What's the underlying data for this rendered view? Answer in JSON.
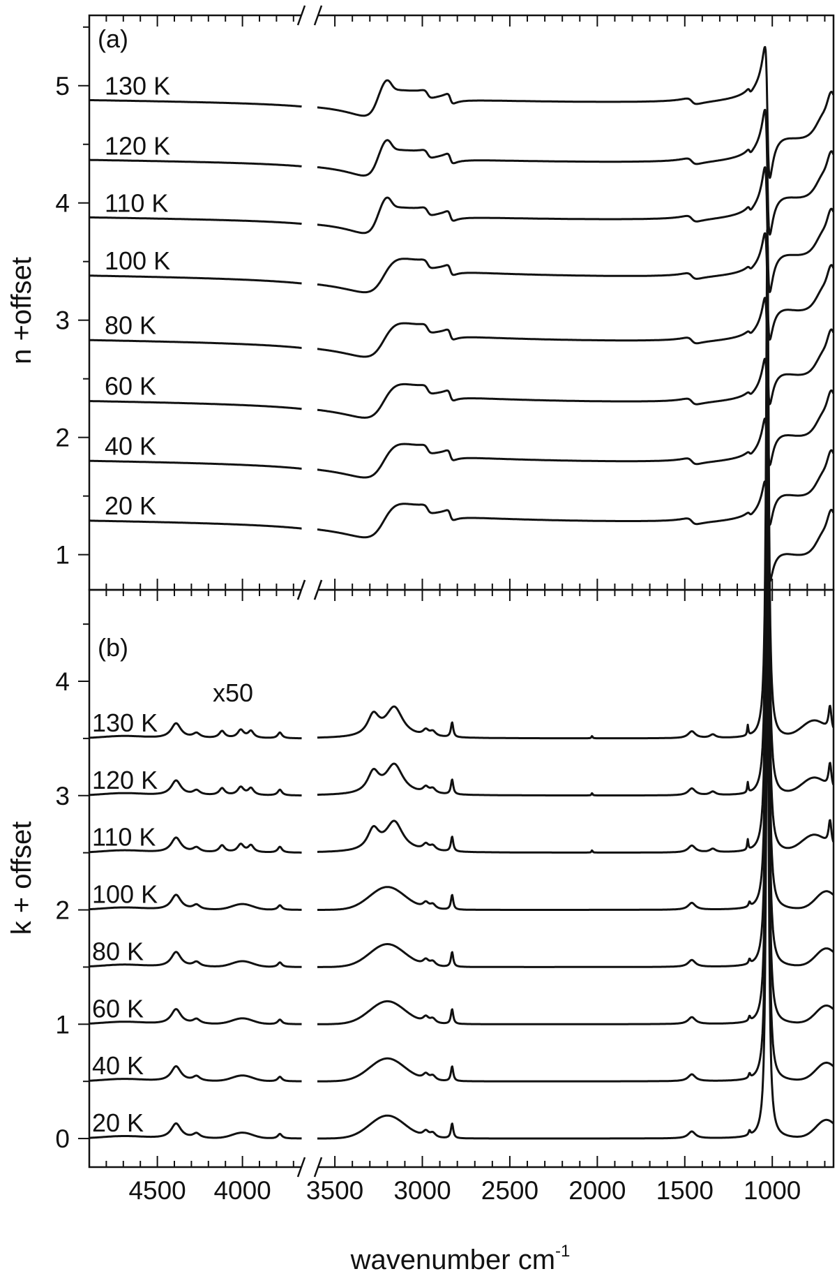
{
  "chart_data": [
    {
      "type": "line",
      "panel_label": "(a)",
      "ylabel": "n +offset",
      "xlabel": "",
      "x_axis": "reversed, broken between 3650 and 3600 cm-1",
      "xlim": [
        4900,
        650
      ],
      "ylim": [
        0.7,
        5.6
      ],
      "y_ticks": [
        1,
        2,
        3,
        4,
        5
      ],
      "y_tick_labels": [
        "1",
        "2",
        "3",
        "4",
        "5"
      ],
      "axis_break_mark": "//",
      "series": [
        {
          "name": "130 K",
          "offset": 4.84,
          "peak_scale": 1.05
        },
        {
          "name": "120 K",
          "offset": 4.33,
          "peak_scale": 1.0
        },
        {
          "name": "110 K",
          "offset": 3.84,
          "peak_scale": 1.0
        },
        {
          "name": "100 K",
          "offset": 3.35,
          "peak_scale": 0.85
        },
        {
          "name": "80 K",
          "offset": 2.8,
          "peak_scale": 0.85
        },
        {
          "name": "60 K",
          "offset": 2.28,
          "peak_scale": 0.85
        },
        {
          "name": "40 K",
          "offset": 1.77,
          "peak_scale": 0.85
        },
        {
          "name": "20 K",
          "offset": 1.26,
          "peak_scale": 0.8
        }
      ]
    },
    {
      "type": "line",
      "panel_label": "(b)",
      "ylabel": "k + offset",
      "xlabel": "wavenumber cm",
      "xlabel_superscript": "-1",
      "x_axis": "reversed, broken between 3650 and 3600 cm-1",
      "xlim": [
        4900,
        650
      ],
      "ylim": [
        -0.25,
        4.8
      ],
      "y_ticks": [
        0,
        1,
        2,
        3,
        4
      ],
      "y_tick_labels": [
        "0",
        "1",
        "2",
        "3",
        "4"
      ],
      "x_ticks": [
        4500,
        4000,
        3500,
        3000,
        2500,
        2000,
        1500,
        1000
      ],
      "x_tick_labels": [
        "4500",
        "4000",
        "3500",
        "3000",
        "2500",
        "2000",
        "1500",
        "1000"
      ],
      "axis_break_mark": "//",
      "annotation": "x50",
      "series": [
        {
          "name": "130 K",
          "offset": 3.5,
          "crystalline": true
        },
        {
          "name": "120 K",
          "offset": 3.0,
          "crystalline": true
        },
        {
          "name": "110 K",
          "offset": 2.5,
          "crystalline": true
        },
        {
          "name": "100 K",
          "offset": 2.0,
          "crystalline": false
        },
        {
          "name": "80 K",
          "offset": 1.5,
          "crystalline": false
        },
        {
          "name": "60 K",
          "offset": 1.0,
          "crystalline": false
        },
        {
          "name": "40 K",
          "offset": 0.5,
          "crystalline": false
        },
        {
          "name": "20 K",
          "offset": 0.0,
          "crystalline": false
        }
      ]
    }
  ]
}
